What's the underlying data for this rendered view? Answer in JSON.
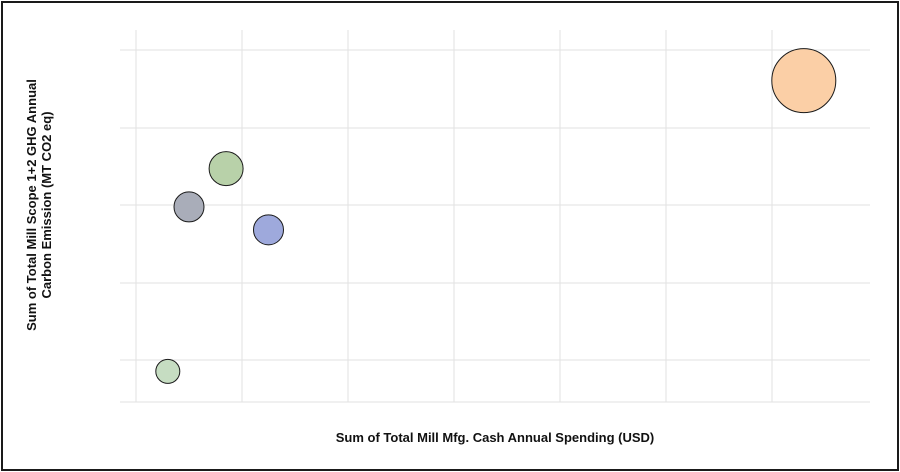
{
  "chart_data": {
    "type": "scatter",
    "title": "",
    "xlabel": "Sum of Total Mill Mfg. Cash Annual Spending (USD)",
    "ylabel_lines": [
      "Sum of Total Mill Scope 1+2 GHG Annual",
      "Carbon Emission (MT CO2 eq)"
    ],
    "tick_labels_shown": false,
    "grid": true,
    "x_gridlines": 7,
    "y_gridlines": 5,
    "xlim": [
      0,
      7
    ],
    "ylim": [
      0,
      4.6
    ],
    "points": [
      {
        "x": 0.3,
        "y": 0.4,
        "size": 0.6,
        "color": "#c6ddc2"
      },
      {
        "x": 0.5,
        "y": 2.55,
        "size": 0.75,
        "color": "#a9adb9"
      },
      {
        "x": 0.85,
        "y": 3.05,
        "size": 0.85,
        "color": "#b8d1a9"
      },
      {
        "x": 1.25,
        "y": 2.25,
        "size": 0.75,
        "color": "#9ea9dc"
      },
      {
        "x": 6.3,
        "y": 4.2,
        "size": 1.6,
        "color": "#fbcfa6"
      }
    ]
  }
}
